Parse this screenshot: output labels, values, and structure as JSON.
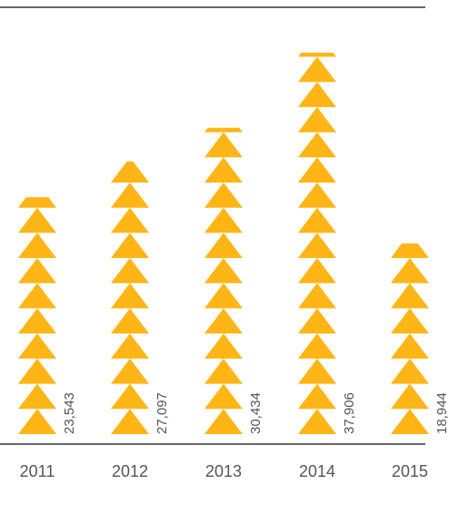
{
  "chart_data": {
    "type": "bar",
    "categories": [
      "2011",
      "2012",
      "2013",
      "2014",
      "2015"
    ],
    "values": [
      23543,
      27097,
      30434,
      37906,
      18944
    ],
    "value_labels": [
      "23,543",
      "27,097",
      "30,434",
      "37,906",
      "18,944"
    ],
    "title": "",
    "xlabel": "",
    "ylabel": "",
    "ylim": [
      0,
      38000
    ],
    "grid": false,
    "legend": "none",
    "colors": {
      "bar": "#FFB515",
      "axis": "#333333",
      "text": "#555555"
    }
  }
}
